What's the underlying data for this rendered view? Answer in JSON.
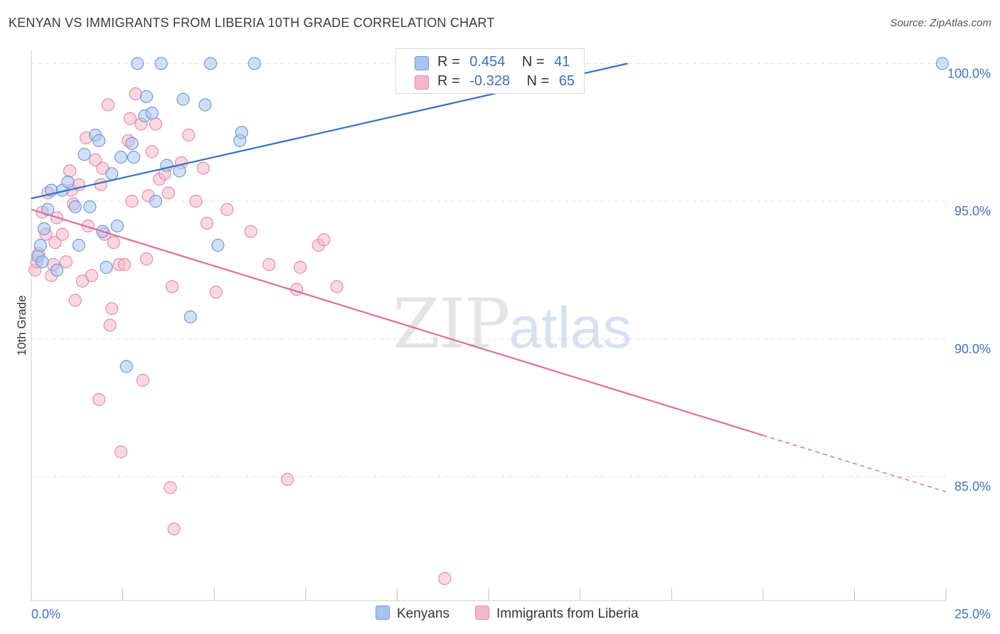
{
  "header": {
    "title": "KENYAN VS IMMIGRANTS FROM LIBERIA 10TH GRADE CORRELATION CHART",
    "source": "Source: ZipAtlas.com"
  },
  "watermark": {
    "zip": "ZIP",
    "atlas": "atlas"
  },
  "legend": {
    "rows": [
      {
        "r_label": "R =",
        "r_value": "0.454",
        "n_label": "N =",
        "n_value": "41",
        "color": "#a9c4ec"
      },
      {
        "r_label": "R =",
        "r_value": "-0.328",
        "n_label": "N =",
        "n_value": "65",
        "color": "#f5b8cb"
      }
    ]
  },
  "bottom_legend": {
    "kenyans": "Kenyans",
    "liberia": "Immigrants from Liberia"
  },
  "colors": {
    "blue_fill": "#a9c4ec",
    "blue_stroke": "#6f9bd8",
    "blue_line": "#3572c9",
    "pink_fill": "#f5b8cb",
    "pink_stroke": "#e98aa8",
    "pink_line": "#e06e97",
    "tick_text": "#4472c4",
    "grid": "#dddddd"
  },
  "chart_data": {
    "type": "scatter",
    "title": "KENYAN VS IMMIGRANTS FROM LIBERIA 10TH GRADE CORRELATION CHART",
    "xlabel": "",
    "ylabel": "10th Grade",
    "xlim": [
      0,
      25
    ],
    "ylim": [
      80.5,
      100.5
    ],
    "x_tick_labels": [
      "0.0%",
      "25.0%"
    ],
    "y_ticks": [
      85,
      90,
      95,
      100
    ],
    "y_tick_labels": [
      "85.0%",
      "90.0%",
      "95.0%",
      "100.0%"
    ],
    "grid": true,
    "legend_position": "top-center",
    "series": [
      {
        "name": "Kenyans",
        "r": 0.454,
        "n": 41,
        "trend": {
          "x": [
            0,
            16.3
          ],
          "y": [
            95.1,
            100.0
          ]
        },
        "points": [
          [
            0.18,
            93.0
          ],
          [
            0.25,
            93.4
          ],
          [
            0.35,
            94.0
          ],
          [
            0.45,
            94.7
          ],
          [
            0.55,
            95.4
          ],
          [
            0.7,
            92.5
          ],
          [
            0.85,
            95.4
          ],
          [
            1.0,
            95.7
          ],
          [
            1.2,
            94.8
          ],
          [
            1.3,
            93.4
          ],
          [
            1.45,
            96.7
          ],
          [
            1.6,
            94.8
          ],
          [
            1.75,
            97.4
          ],
          [
            1.85,
            97.2
          ],
          [
            1.95,
            93.9
          ],
          [
            2.05,
            92.6
          ],
          [
            2.2,
            96.0
          ],
          [
            2.35,
            94.1
          ],
          [
            2.45,
            96.6
          ],
          [
            2.6,
            89.0
          ],
          [
            2.8,
            96.6
          ],
          [
            2.75,
            97.1
          ],
          [
            2.9,
            100.0
          ],
          [
            3.1,
            98.1
          ],
          [
            3.15,
            98.8
          ],
          [
            3.3,
            98.2
          ],
          [
            3.4,
            95.0
          ],
          [
            3.55,
            100.0
          ],
          [
            3.7,
            96.3
          ],
          [
            4.05,
            96.1
          ],
          [
            4.15,
            98.7
          ],
          [
            4.35,
            90.8
          ],
          [
            4.75,
            98.5
          ],
          [
            4.9,
            100.0
          ],
          [
            5.1,
            93.4
          ],
          [
            5.7,
            97.2
          ],
          [
            5.75,
            97.5
          ],
          [
            6.1,
            100.0
          ],
          [
            10.2,
            100.0
          ],
          [
            24.9,
            100.0
          ],
          [
            0.3,
            92.8
          ]
        ]
      },
      {
        "name": "Immigrants from Liberia",
        "r": -0.328,
        "n": 65,
        "trend": {
          "x": [
            0,
            20.0
          ],
          "y": [
            94.7,
            86.5
          ]
        },
        "trend_dashed": {
          "x": [
            20.0,
            25.0
          ],
          "y": [
            86.5,
            84.45
          ]
        },
        "points": [
          [
            0.1,
            92.5
          ],
          [
            0.15,
            92.8
          ],
          [
            0.2,
            93.1
          ],
          [
            0.3,
            94.6
          ],
          [
            0.4,
            93.8
          ],
          [
            0.45,
            95.3
          ],
          [
            0.55,
            92.3
          ],
          [
            0.6,
            92.7
          ],
          [
            0.65,
            93.5
          ],
          [
            0.7,
            94.4
          ],
          [
            0.85,
            93.8
          ],
          [
            0.95,
            92.8
          ],
          [
            1.05,
            96.1
          ],
          [
            1.1,
            95.4
          ],
          [
            1.15,
            94.9
          ],
          [
            1.2,
            91.4
          ],
          [
            1.3,
            95.6
          ],
          [
            1.4,
            92.1
          ],
          [
            1.5,
            97.3
          ],
          [
            1.55,
            94.1
          ],
          [
            1.65,
            92.3
          ],
          [
            1.75,
            96.5
          ],
          [
            1.85,
            87.8
          ],
          [
            1.9,
            95.6
          ],
          [
            1.95,
            96.2
          ],
          [
            2.0,
            93.8
          ],
          [
            2.1,
            98.5
          ],
          [
            2.15,
            90.5
          ],
          [
            2.2,
            91.1
          ],
          [
            2.25,
            93.5
          ],
          [
            2.4,
            92.7
          ],
          [
            2.45,
            85.9
          ],
          [
            2.55,
            92.7
          ],
          [
            2.65,
            97.2
          ],
          [
            2.7,
            98.0
          ],
          [
            2.75,
            95.0
          ],
          [
            2.85,
            98.9
          ],
          [
            3.0,
            97.8
          ],
          [
            3.05,
            88.5
          ],
          [
            3.15,
            92.9
          ],
          [
            3.2,
            95.2
          ],
          [
            3.3,
            96.8
          ],
          [
            3.4,
            97.8
          ],
          [
            3.5,
            95.8
          ],
          [
            3.65,
            96.0
          ],
          [
            3.75,
            95.3
          ],
          [
            3.8,
            84.6
          ],
          [
            3.85,
            91.9
          ],
          [
            3.9,
            83.1
          ],
          [
            4.1,
            96.4
          ],
          [
            4.3,
            97.4
          ],
          [
            4.5,
            95.0
          ],
          [
            4.7,
            96.2
          ],
          [
            4.8,
            94.2
          ],
          [
            5.05,
            91.7
          ],
          [
            5.35,
            94.7
          ],
          [
            6.0,
            93.9
          ],
          [
            6.5,
            92.7
          ],
          [
            7.0,
            84.9
          ],
          [
            7.25,
            91.8
          ],
          [
            7.35,
            92.6
          ],
          [
            7.85,
            93.4
          ],
          [
            8.0,
            93.6
          ],
          [
            8.35,
            91.9
          ],
          [
            11.3,
            81.3
          ]
        ]
      }
    ]
  }
}
